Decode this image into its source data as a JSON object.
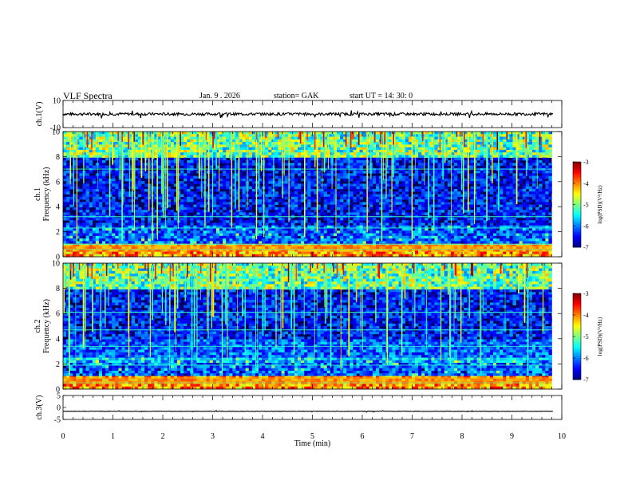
{
  "header": {
    "title": "VLF Spectra",
    "date": "Jan. 9 . 2026",
    "station": "station= GAK",
    "start": "start UT = 14: 30: 0"
  },
  "chart_data": [
    {
      "type": "line",
      "name": "waveform-ch1",
      "ylabel": "ch.1(V)",
      "ylim": [
        -10,
        10
      ],
      "yticks": [
        "10",
        "-10"
      ],
      "xlim": [
        0,
        10
      ],
      "series": [
        {
          "approx_level": 0,
          "approx_amplitude": 2
        }
      ]
    },
    {
      "type": "heatmap",
      "name": "spectrogram-ch1",
      "ylabel_lines": [
        "ch.1",
        "Frequency (kHz)"
      ],
      "ylim": [
        0,
        10
      ],
      "yticks": [
        "0",
        "2",
        "4",
        "6",
        "8",
        "10"
      ],
      "xlim": [
        0,
        9.8
      ],
      "colorbar": {
        "label": "log(PSD)(V²/Hz)",
        "range": [
          -7,
          -3
        ],
        "ticks": [
          "-3",
          "-4",
          "-5",
          "-6",
          "-7"
        ]
      }
    },
    {
      "type": "heatmap",
      "name": "spectrogram-ch2",
      "ylabel_lines": [
        "ch.2",
        "Frequency (kHz)"
      ],
      "ylim": [
        0,
        10
      ],
      "yticks": [
        "0",
        "2",
        "4",
        "6",
        "8",
        "10"
      ],
      "xlim": [
        0,
        9.8
      ],
      "colorbar": {
        "label": "log(PSD)(V²/Hz)",
        "range": [
          -7,
          -3
        ],
        "ticks": [
          "-3",
          "-4",
          "-5",
          "-6",
          "-7"
        ]
      }
    },
    {
      "type": "line",
      "name": "waveform-ch3",
      "ylabel": "ch.3(V)",
      "ylim": [
        -5,
        5
      ],
      "yticks": [
        "5",
        "0",
        "-5"
      ],
      "xlim": [
        0,
        10
      ],
      "series": [
        {
          "approx_level": -1.6,
          "approx_amplitude": 0.2
        }
      ]
    }
  ],
  "xaxis": {
    "label": "Time (min)",
    "range": [
      0,
      10
    ],
    "ticks": [
      "0",
      "1",
      "2",
      "3",
      "4",
      "5",
      "6",
      "7",
      "8",
      "9",
      "10"
    ]
  }
}
